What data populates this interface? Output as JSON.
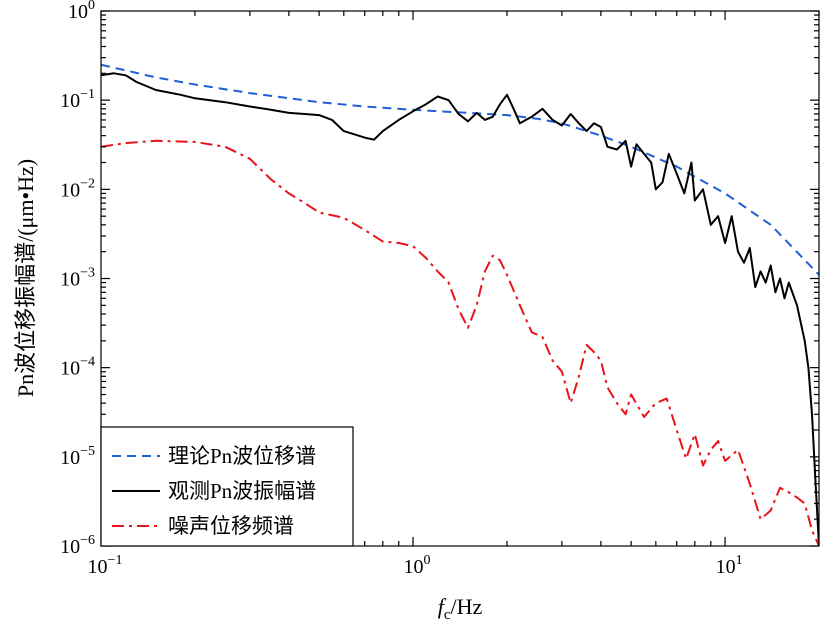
{
  "chart_data": {
    "type": "line",
    "xscale": "log",
    "yscale": "log",
    "xlim": [
      0.1,
      20
    ],
    "ylim": [
      1e-06,
      1
    ],
    "x_ticks": [
      {
        "base": "10",
        "exp": "−1",
        "value": 0.1
      },
      {
        "base": "10",
        "exp": "0",
        "value": 1
      },
      {
        "base": "10",
        "exp": "1",
        "value": 10
      }
    ],
    "y_ticks": [
      {
        "base": "10",
        "exp": "0",
        "value": 1
      },
      {
        "base": "10",
        "exp": "−1",
        "value": 0.1
      },
      {
        "base": "10",
        "exp": "−2",
        "value": 0.01
      },
      {
        "base": "10",
        "exp": "−3",
        "value": 0.001
      },
      {
        "base": "10",
        "exp": "−4",
        "value": 0.0001
      },
      {
        "base": "10",
        "exp": "−5",
        "value": 1e-05
      },
      {
        "base": "10",
        "exp": "−6",
        "value": 1e-06
      }
    ],
    "xlabel": {
      "symbol": "f",
      "subscript": "c",
      "unit": "/Hz"
    },
    "ylabel": "Pn波位移振幅谱/(μm•Hz)",
    "legend_position": "bottom-left",
    "series": [
      {
        "name": "理论Pn波位移谱",
        "color": "#1f5fd6",
        "style": "dashed",
        "points": [
          [
            0.1,
            0.25
          ],
          [
            0.15,
            0.18
          ],
          [
            0.2,
            0.15
          ],
          [
            0.3,
            0.12
          ],
          [
            0.5,
            0.095
          ],
          [
            0.7,
            0.085
          ],
          [
            1.0,
            0.078
          ],
          [
            1.5,
            0.072
          ],
          [
            2.0,
            0.068
          ],
          [
            2.5,
            0.062
          ],
          [
            3.0,
            0.055
          ],
          [
            4.0,
            0.04
          ],
          [
            5.0,
            0.03
          ],
          [
            7.0,
            0.018
          ],
          [
            10.0,
            0.009
          ],
          [
            14.0,
            0.004
          ],
          [
            20.0,
            0.0011
          ]
        ]
      },
      {
        "name": "观测Pn波振幅谱",
        "color": "#000000",
        "style": "solid",
        "points": [
          [
            0.1,
            0.19
          ],
          [
            0.11,
            0.2
          ],
          [
            0.12,
            0.19
          ],
          [
            0.13,
            0.16
          ],
          [
            0.15,
            0.13
          ],
          [
            0.18,
            0.115
          ],
          [
            0.2,
            0.105
          ],
          [
            0.25,
            0.095
          ],
          [
            0.3,
            0.085
          ],
          [
            0.35,
            0.078
          ],
          [
            0.4,
            0.072
          ],
          [
            0.45,
            0.07
          ],
          [
            0.5,
            0.068
          ],
          [
            0.55,
            0.06
          ],
          [
            0.6,
            0.045
          ],
          [
            0.7,
            0.038
          ],
          [
            0.75,
            0.036
          ],
          [
            0.8,
            0.045
          ],
          [
            0.9,
            0.06
          ],
          [
            1.0,
            0.075
          ],
          [
            1.1,
            0.09
          ],
          [
            1.2,
            0.11
          ],
          [
            1.3,
            0.1
          ],
          [
            1.4,
            0.07
          ],
          [
            1.5,
            0.058
          ],
          [
            1.6,
            0.072
          ],
          [
            1.7,
            0.06
          ],
          [
            1.8,
            0.065
          ],
          [
            1.9,
            0.09
          ],
          [
            2.0,
            0.115
          ],
          [
            2.1,
            0.08
          ],
          [
            2.2,
            0.055
          ],
          [
            2.4,
            0.065
          ],
          [
            2.6,
            0.08
          ],
          [
            2.8,
            0.06
          ],
          [
            3.0,
            0.052
          ],
          [
            3.2,
            0.07
          ],
          [
            3.4,
            0.055
          ],
          [
            3.6,
            0.045
          ],
          [
            3.8,
            0.055
          ],
          [
            4.0,
            0.05
          ],
          [
            4.2,
            0.03
          ],
          [
            4.5,
            0.028
          ],
          [
            4.8,
            0.035
          ],
          [
            5.0,
            0.018
          ],
          [
            5.2,
            0.032
          ],
          [
            5.5,
            0.025
          ],
          [
            5.8,
            0.02
          ],
          [
            6.0,
            0.01
          ],
          [
            6.3,
            0.012
          ],
          [
            6.6,
            0.025
          ],
          [
            7.0,
            0.015
          ],
          [
            7.4,
            0.009
          ],
          [
            7.8,
            0.02
          ],
          [
            8.0,
            0.0075
          ],
          [
            8.5,
            0.01
          ],
          [
            9.0,
            0.004
          ],
          [
            9.5,
            0.005
          ],
          [
            10.0,
            0.0025
          ],
          [
            10.5,
            0.005
          ],
          [
            11.0,
            0.002
          ],
          [
            11.5,
            0.0015
          ],
          [
            12.0,
            0.0022
          ],
          [
            12.5,
            0.0008
          ],
          [
            13.0,
            0.0012
          ],
          [
            13.5,
            0.0009
          ],
          [
            14.0,
            0.0014
          ],
          [
            14.5,
            0.0007
          ],
          [
            15.0,
            0.001
          ],
          [
            15.5,
            0.0006
          ],
          [
            16.0,
            0.0009
          ],
          [
            17.0,
            0.0005
          ],
          [
            18.0,
            0.0002
          ],
          [
            18.5,
            0.0001
          ],
          [
            19.0,
            3e-05
          ],
          [
            19.5,
            5e-06
          ],
          [
            20.0,
            1e-06
          ]
        ]
      },
      {
        "name": "噪声位移频谱",
        "color": "#e8141c",
        "style": "dashdot",
        "points": [
          [
            0.1,
            0.03
          ],
          [
            0.12,
            0.033
          ],
          [
            0.15,
            0.035
          ],
          [
            0.2,
            0.034
          ],
          [
            0.25,
            0.03
          ],
          [
            0.3,
            0.022
          ],
          [
            0.35,
            0.013
          ],
          [
            0.4,
            0.009
          ],
          [
            0.45,
            0.007
          ],
          [
            0.5,
            0.0055
          ],
          [
            0.6,
            0.0048
          ],
          [
            0.7,
            0.0035
          ],
          [
            0.8,
            0.0026
          ],
          [
            0.9,
            0.0025
          ],
          [
            1.0,
            0.0023
          ],
          [
            1.1,
            0.0017
          ],
          [
            1.2,
            0.0012
          ],
          [
            1.3,
            0.0009
          ],
          [
            1.4,
            0.00045
          ],
          [
            1.5,
            0.00028
          ],
          [
            1.6,
            0.0005
          ],
          [
            1.7,
            0.0012
          ],
          [
            1.8,
            0.0018
          ],
          [
            1.9,
            0.0016
          ],
          [
            2.0,
            0.0011
          ],
          [
            2.2,
            0.0005
          ],
          [
            2.4,
            0.00025
          ],
          [
            2.6,
            0.00022
          ],
          [
            2.8,
            0.00012
          ],
          [
            3.0,
            9e-05
          ],
          [
            3.2,
            4e-05
          ],
          [
            3.4,
            8e-05
          ],
          [
            3.6,
            0.00018
          ],
          [
            3.8,
            0.00015
          ],
          [
            4.0,
            0.00012
          ],
          [
            4.2,
            6e-05
          ],
          [
            4.5,
            4e-05
          ],
          [
            4.8,
            3e-05
          ],
          [
            5.0,
            5e-05
          ],
          [
            5.5,
            2.8e-05
          ],
          [
            6.0,
            4e-05
          ],
          [
            6.5,
            4.5e-05
          ],
          [
            7.0,
            2e-05
          ],
          [
            7.5,
            9.5e-06
          ],
          [
            8.0,
            1.8e-05
          ],
          [
            8.5,
            8e-06
          ],
          [
            9.0,
            1.2e-05
          ],
          [
            9.5,
            1.5e-05
          ],
          [
            10.0,
            9e-06
          ],
          [
            11.0,
            1.2e-05
          ],
          [
            12.0,
            5e-06
          ],
          [
            13.0,
            2e-06
          ],
          [
            14.0,
            2.5e-06
          ],
          [
            15.0,
            4.5e-06
          ],
          [
            16.0,
            4e-06
          ],
          [
            17.0,
            3.5e-06
          ],
          [
            18.0,
            3e-06
          ],
          [
            19.0,
            1.5e-06
          ],
          [
            20.0,
            1e-06
          ]
        ]
      }
    ]
  }
}
